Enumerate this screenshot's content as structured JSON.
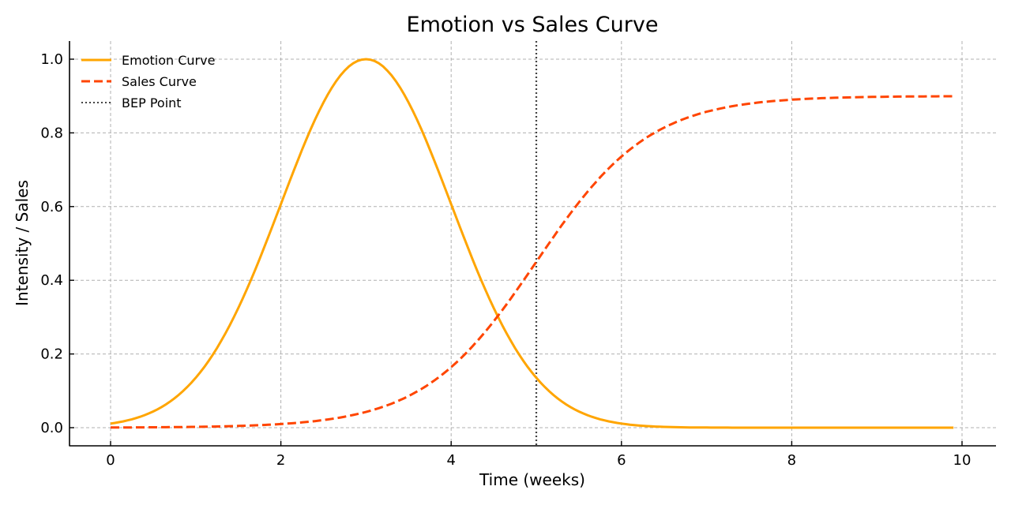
{
  "chart_data": {
    "type": "line",
    "title": "Emotion vs Sales Curve",
    "xlabel": "Time (weeks)",
    "ylabel": "Intensity / Sales",
    "xlim": [
      -0.5,
      10.4
    ],
    "ylim": [
      -0.05,
      1.05
    ],
    "x_ticks": [
      0,
      2,
      4,
      6,
      8,
      10
    ],
    "x_tick_labels": [
      "0",
      "2",
      "4",
      "6",
      "8",
      "10"
    ],
    "y_ticks": [
      0.0,
      0.2,
      0.4,
      0.6,
      0.8,
      1.0
    ],
    "y_tick_labels": [
      "0.0",
      "0.2",
      "0.4",
      "0.6",
      "0.8",
      "1.0"
    ],
    "grid": true,
    "legend_position": "upper left",
    "x": [
      0,
      0.5,
      1,
      1.5,
      2,
      2.5,
      3,
      3.5,
      4,
      4.5,
      5,
      5.5,
      6,
      6.5,
      7,
      7.5,
      8,
      8.5,
      9,
      9.5,
      9.9
    ],
    "series": [
      {
        "name": "Emotion Curve",
        "color": "#FFA500",
        "style": "solid",
        "values": [
          0.011,
          0.044,
          0.135,
          0.325,
          0.607,
          0.882,
          1.0,
          0.882,
          0.607,
          0.325,
          0.135,
          0.044,
          0.011,
          0.002,
          0.0,
          0.0,
          0.0,
          0.0,
          0.0,
          0.0,
          0.0
        ]
      },
      {
        "name": "Sales Curve",
        "color": "#FF4500",
        "style": "dashed",
        "values": [
          0.0005,
          0.001,
          0.002,
          0.005,
          0.01,
          0.021,
          0.043,
          0.085,
          0.164,
          0.288,
          0.45,
          0.612,
          0.736,
          0.815,
          0.857,
          0.879,
          0.89,
          0.895,
          0.898,
          0.899,
          0.9
        ]
      }
    ],
    "annotations": [
      {
        "name": "BEP Point",
        "type": "vertical_line",
        "x": 5,
        "color": "#444444",
        "style": "dotted"
      }
    ],
    "legend": [
      "Emotion Curve",
      "Sales Curve",
      "BEP Point"
    ]
  }
}
